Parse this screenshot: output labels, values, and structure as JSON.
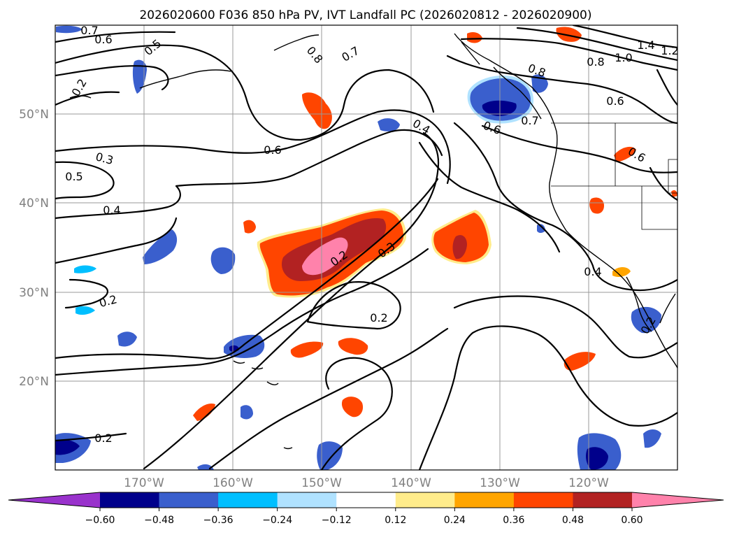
{
  "title": "2026020600 F036 850 hPa PV, IVT Landfall PC (2026020812 - 2026020900)",
  "axes": {
    "lat_labels": [
      "50°N",
      "40°N",
      "30°N",
      "20°N"
    ],
    "lon_labels": [
      "170°W",
      "160°W",
      "150°W",
      "140°W",
      "130°W",
      "120°W"
    ]
  },
  "contour_labels": [
    "0.7",
    "0.6",
    "0.5",
    "0.2",
    "0.8",
    "0.7",
    "1.4",
    "1.2",
    "1.0",
    "0.8",
    "0.8",
    "0.6",
    "0.6",
    "0.7",
    "0.4",
    "0.6",
    "0.3",
    "0.5",
    "0.4",
    "0.6",
    "0.2",
    "0.3",
    "0.2",
    "0.2",
    "0.2",
    "0.4",
    "0.2"
  ],
  "colorbar": {
    "ticks": [
      "−0.60",
      "−0.48",
      "−0.36",
      "−0.24",
      "−0.12",
      "0.12",
      "0.24",
      "0.36",
      "0.48",
      "0.60"
    ],
    "colors": [
      "#9932cc",
      "#00008b",
      "#3a5fcd",
      "#00bfff",
      "#b0e2ff",
      "#ffffff",
      "#ffec8b",
      "#ffa500",
      "#ff4500",
      "#b22222",
      "#ff82ab"
    ]
  },
  "colors": {
    "pos_low": "#ffec8b",
    "pos_mid": "#ffa500",
    "pos_high": "#ff4500",
    "pos_higher": "#b22222",
    "pos_max": "#ff82ab",
    "neg_low": "#b0e2ff",
    "neg_mid": "#00bfff",
    "neg_high": "#3a5fcd",
    "neg_max": "#00008b"
  }
}
